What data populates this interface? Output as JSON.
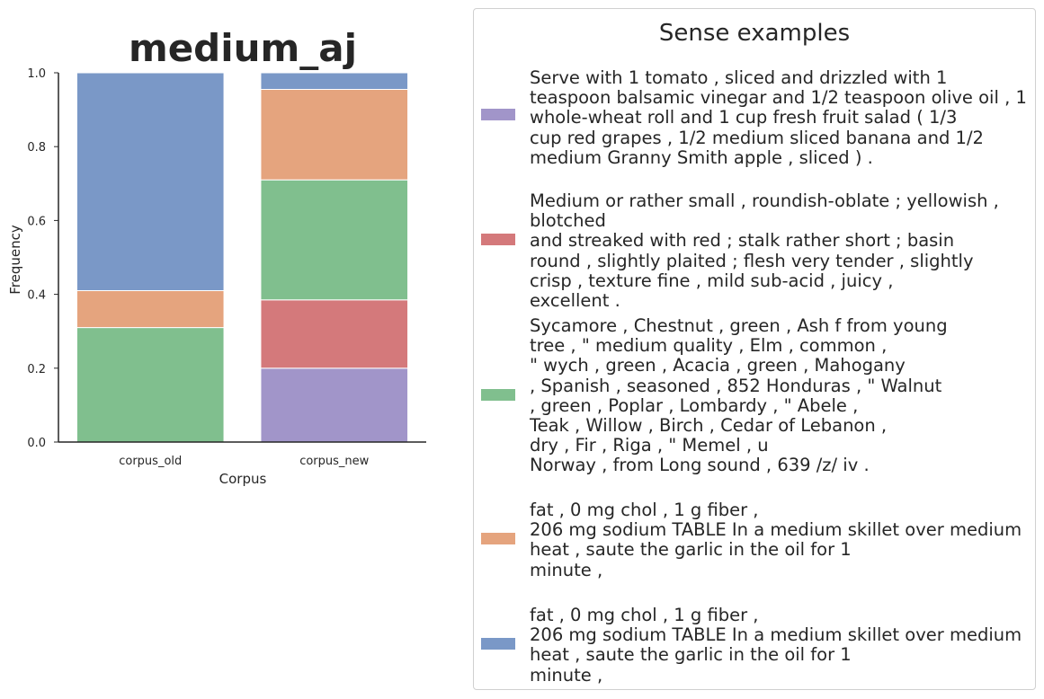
{
  "chart_data": {
    "type": "bar",
    "stacked": true,
    "title": "medium_aj",
    "xlabel": "Corpus",
    "ylabel": "Frequency",
    "ylim": [
      0,
      1.0
    ],
    "yticks": [
      "0.0",
      "0.2",
      "0.4",
      "0.6",
      "0.8",
      "1.0"
    ],
    "categories": [
      "corpus_old",
      "corpus_new"
    ],
    "series": [
      {
        "key": "purple",
        "color": "#a195c9",
        "values": [
          0.0,
          0.2
        ]
      },
      {
        "key": "red",
        "color": "#d4797b",
        "values": [
          0.0,
          0.185
        ]
      },
      {
        "key": "green",
        "color": "#80bf8e",
        "values": [
          0.31,
          0.325
        ]
      },
      {
        "key": "orange",
        "color": "#e5a47e",
        "values": [
          0.1,
          0.245
        ]
      },
      {
        "key": "blue",
        "color": "#7a98c7",
        "values": [
          0.59,
          0.045
        ]
      }
    ],
    "grid": false,
    "legend_placement": "right"
  },
  "legend": {
    "title": "Sense examples",
    "entries": [
      {
        "color": "#a195c9",
        "text": "Serve with 1 tomato , sliced and drizzled with 1\nteaspoon balsamic vinegar and 1/2 teaspoon olive oil , 1\nwhole-wheat roll and 1 cup fresh fruit salad ( 1/3\ncup red grapes , 1/2 medium sliced banana and 1/2\nmedium Granny Smith apple , sliced ) ."
      },
      {
        "color": "#d4797b",
        "text": "Medium or rather small , roundish-oblate ; yellowish , blotched\nand streaked with red ; stalk rather short ; basin\nround , slightly plaited ; flesh very tender , slightly\ncrisp , texture fine , mild sub-acid , juicy ,\nexcellent ."
      },
      {
        "color": "#80bf8e",
        "text": "Sycamore , Chestnut , green , Ash f from young\ntree , \" medium quality , Elm , common ,\n\" wych , green , Acacia , green , Mahogany\n, Spanish , seasoned , 852 Honduras , \" Walnut\n, green , Poplar , Lombardy , \" Abele ,\nTeak , Willow , Birch , Cedar of Lebanon ,\ndry , Fir , Riga , \" Memel , u\nNorway , from Long sound , 639 /z/ iv ."
      },
      {
        "color": "#e5a47e",
        "text": "fat , 0 mg chol , 1 g fiber ,\n206 mg sodium TABLE In a medium skillet over medium\nheat , saute the garlic in the oil for 1\nminute ,"
      },
      {
        "color": "#7a98c7",
        "text": "fat , 0 mg chol , 1 g fiber ,\n206 mg sodium TABLE In a medium skillet over medium\nheat , saute the garlic in the oil for 1\nminute ,"
      }
    ]
  }
}
